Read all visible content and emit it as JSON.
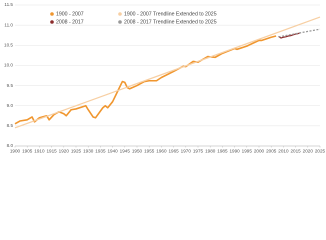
{
  "chart_data": {
    "type": "line",
    "xlim": [
      1900,
      2025
    ],
    "xticks": [
      1900,
      1905,
      1910,
      1915,
      1920,
      1925,
      1930,
      1935,
      1940,
      1945,
      1950,
      1955,
      1960,
      1965,
      1970,
      1975,
      1980,
      1985,
      1990,
      1995,
      2000,
      2005,
      2010,
      2015,
      2020,
      2025
    ],
    "ylim": [
      8,
      11.5
    ],
    "yticks": [
      {
        "value": 8,
        "label": "8.0"
      },
      {
        "value": 8.5,
        "label": "8.5"
      },
      {
        "value": 9,
        "label": "9.0"
      },
      {
        "value": 9.5,
        "label": "9.5"
      },
      {
        "value": 10,
        "label": "10.0"
      },
      {
        "value": 10.5,
        "label": "10.5"
      },
      {
        "value": 11,
        "label": "11.0"
      },
      {
        "value": 11.5,
        "label": "11.5"
      }
    ],
    "grid": true,
    "legend": "top-left",
    "series": [
      {
        "name": "1900 - 2007",
        "color": "#f0962e",
        "style": "solid",
        "x": [
          1900,
          1902,
          1905,
          1907,
          1908,
          1910,
          1913,
          1914,
          1916,
          1918,
          1920,
          1921,
          1923,
          1925,
          1929,
          1930,
          1932,
          1933,
          1936,
          1937,
          1938,
          1940,
          1942,
          1944,
          1945,
          1946,
          1947,
          1950,
          1953,
          1955,
          1958,
          1960,
          1965,
          1969,
          1970,
          1973,
          1975,
          1979,
          1982,
          1985,
          1990,
          1991,
          1995,
          2000,
          2001,
          2005,
          2007
        ],
        "values": [
          8.55,
          8.62,
          8.65,
          8.72,
          8.6,
          8.7,
          8.75,
          8.65,
          8.78,
          8.85,
          8.8,
          8.75,
          8.9,
          8.92,
          9.0,
          8.9,
          8.72,
          8.7,
          8.95,
          9.0,
          8.95,
          9.1,
          9.35,
          9.6,
          9.58,
          9.45,
          9.42,
          9.5,
          9.6,
          9.62,
          9.62,
          9.7,
          9.85,
          9.98,
          9.97,
          10.1,
          10.08,
          10.22,
          10.2,
          10.3,
          10.42,
          10.4,
          10.48,
          10.62,
          10.62,
          10.7,
          10.73
        ]
      },
      {
        "name": "1900 - 2007 Trendline Extended to 2025",
        "color": "#f7cfa3",
        "style": "solid",
        "x": [
          1900,
          2025
        ],
        "values": [
          8.45,
          11.2
        ]
      },
      {
        "name": "2008 - 2017",
        "color": "#8b2c2c",
        "style": "solid",
        "x": [
          2008,
          2009,
          2010,
          2011,
          2012,
          2013,
          2014,
          2015,
          2016,
          2017
        ],
        "values": [
          10.72,
          10.68,
          10.7,
          10.71,
          10.73,
          10.74,
          10.76,
          10.78,
          10.79,
          10.81
        ]
      },
      {
        "name": "2008 - 2017 Trendline Extended to 2025",
        "color": "#999999",
        "style": "dashed",
        "x": [
          2008,
          2025
        ],
        "values": [
          10.71,
          10.9
        ]
      }
    ]
  }
}
